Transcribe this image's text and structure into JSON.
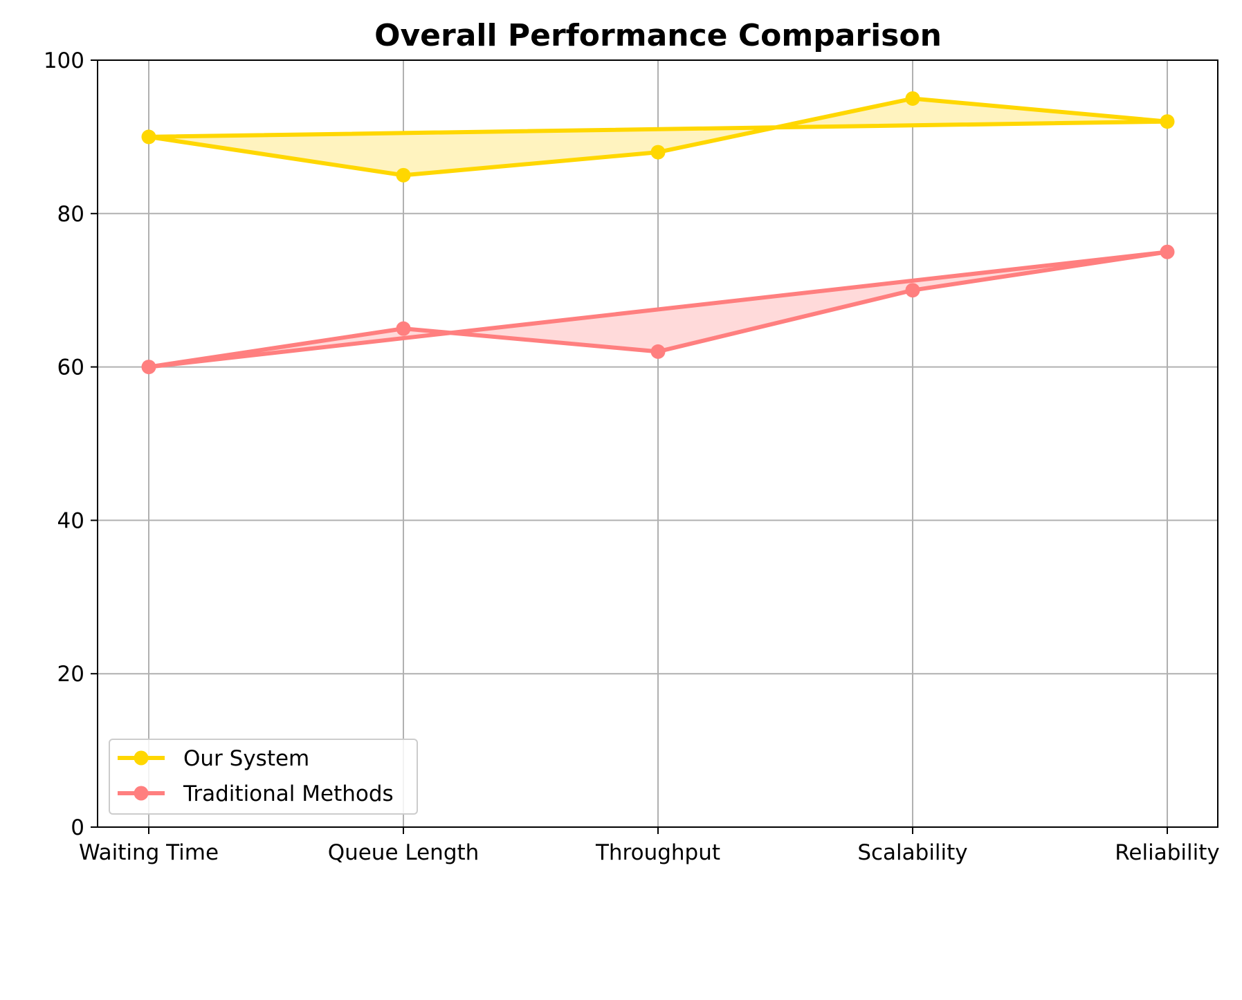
{
  "chart_data": {
    "type": "line",
    "title": "Overall Performance Comparison",
    "xlabel": "",
    "ylabel": "",
    "categories": [
      "Waiting Time",
      "Queue Length",
      "Throughput",
      "Scalability",
      "Reliability"
    ],
    "ylim": [
      0,
      100
    ],
    "yticks": [
      0,
      20,
      40,
      60,
      80,
      100
    ],
    "grid": true,
    "legend_position": "lower-left",
    "series": [
      {
        "name": "Our System",
        "values": [
          90,
          85,
          88,
          95,
          92
        ],
        "color": "#FFD700",
        "fill_color": "#FFF3BF"
      },
      {
        "name": "Traditional Methods",
        "values": [
          60,
          65,
          62,
          70,
          75
        ],
        "color": "#FF7F7F",
        "fill_color": "#FFDADA"
      }
    ]
  }
}
